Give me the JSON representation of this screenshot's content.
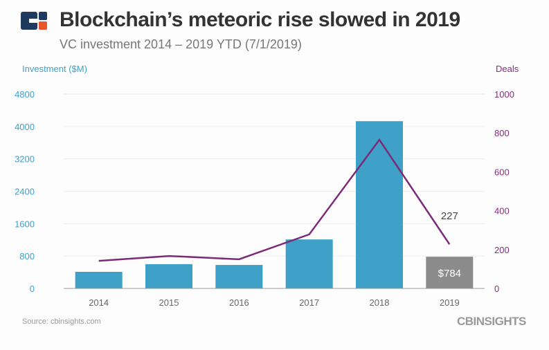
{
  "header": {
    "title": "Blockchain’s meteoric rise slowed in 2019",
    "subtitle": "VC investment 2014 – 2019 YTD (7/1/2019)"
  },
  "footer": {
    "source": "Source: cbinsights.com",
    "brand": "CBINSIGHTS"
  },
  "colors": {
    "bar": "#3fa0c8",
    "bar_ytd": "#8c8c8c",
    "line": "#7b2a78",
    "left_axis": "#3fa0c8",
    "right_axis": "#8b2b7f",
    "logo_blue": "#1f3a5f",
    "logo_orange": "#e8552c"
  },
  "chart_data": {
    "type": "bar+line",
    "categories": [
      "2014",
      "2015",
      "2016",
      "2017",
      "2018",
      "2019"
    ],
    "ylabel": "Investment ($M)",
    "y2label": "Deals",
    "ylim": [
      0,
      4800
    ],
    "yticks": [
      "0",
      "800",
      "1600",
      "2400",
      "3200",
      "4000",
      "4800"
    ],
    "y2lim": [
      0,
      1000
    ],
    "y2ticks": [
      "0",
      "200",
      "400",
      "600",
      "800",
      "1000"
    ],
    "grid": true,
    "series": [
      {
        "name": "Investment ($M)",
        "type": "bar",
        "axis": "left",
        "values": [
          410,
          600,
          580,
          1210,
          4130,
          784
        ]
      },
      {
        "name": "Deals",
        "type": "line",
        "axis": "right",
        "values": [
          142,
          167,
          150,
          278,
          765,
          227
        ]
      }
    ],
    "annotations": {
      "bar_label": "$784",
      "line_label": "227"
    }
  }
}
